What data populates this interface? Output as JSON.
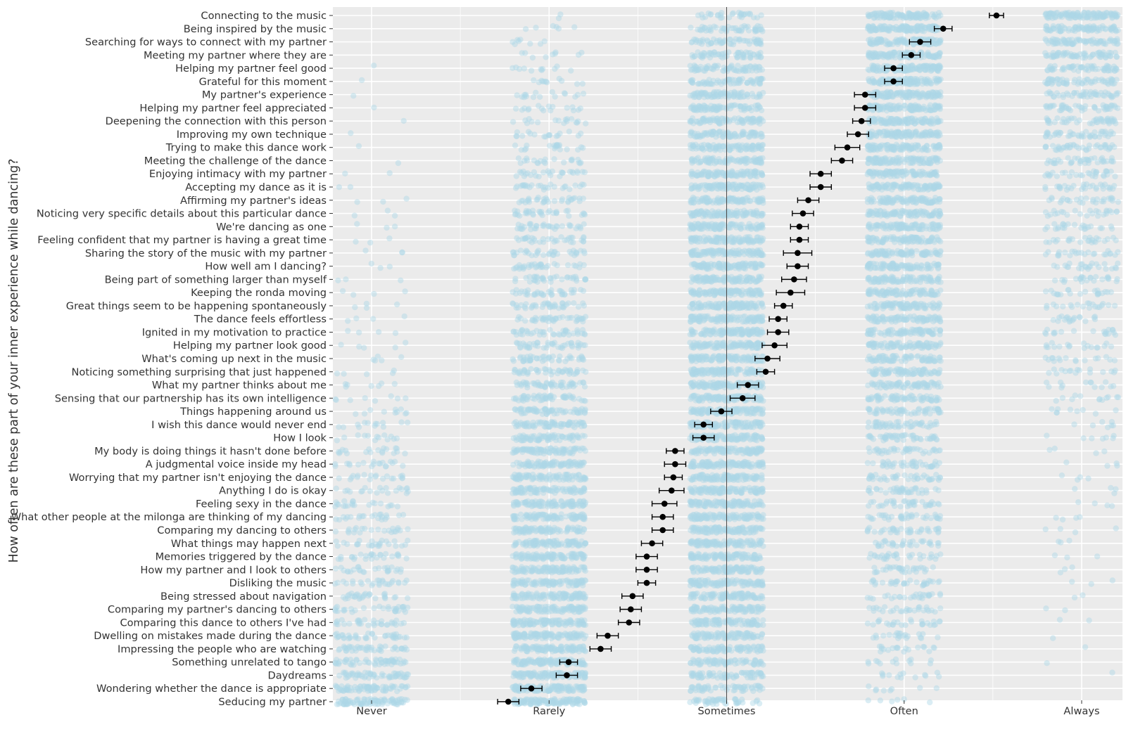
{
  "chart_data": {
    "type": "scatter",
    "title": "",
    "xlabel": "",
    "ylabel": "How often are these part of your inner experience while dancing?",
    "x_ticks": [
      "Never",
      "Rarely",
      "Sometimes",
      "Often",
      "Always"
    ],
    "xlim": [
      0.8,
      5.2
    ],
    "reference_line_x": 3,
    "raw_point_color": "#add8e6",
    "mean_point_color": "#000000",
    "panel_background": "#ebebeb",
    "grid": true,
    "items": [
      {
        "label": "Connecting to the music",
        "mean": 4.52,
        "lo": 4.48,
        "hi": 4.56
      },
      {
        "label": "Being inspired by the music",
        "mean": 4.22,
        "lo": 4.17,
        "hi": 4.27
      },
      {
        "label": "Searching for ways to connect with my partner",
        "mean": 4.09,
        "lo": 4.03,
        "hi": 4.15
      },
      {
        "label": "Meeting my partner where they are",
        "mean": 4.04,
        "lo": 3.99,
        "hi": 4.09
      },
      {
        "label": "Helping my partner feel good",
        "mean": 3.94,
        "lo": 3.89,
        "hi": 3.99
      },
      {
        "label": "Grateful for this moment",
        "mean": 3.94,
        "lo": 3.89,
        "hi": 3.99
      },
      {
        "label": "My partner's experience",
        "mean": 3.78,
        "lo": 3.72,
        "hi": 3.84
      },
      {
        "label": "Helping my partner feel appreciated",
        "mean": 3.78,
        "lo": 3.72,
        "hi": 3.84
      },
      {
        "label": "Deepening the connection with this person",
        "mean": 3.76,
        "lo": 3.71,
        "hi": 3.81
      },
      {
        "label": "Improving my own technique",
        "mean": 3.74,
        "lo": 3.68,
        "hi": 3.8
      },
      {
        "label": "Trying to make this dance work",
        "mean": 3.68,
        "lo": 3.61,
        "hi": 3.75
      },
      {
        "label": "Meeting the challenge of the dance",
        "mean": 3.65,
        "lo": 3.59,
        "hi": 3.71
      },
      {
        "label": "Enjoying intimacy with my partner",
        "mean": 3.53,
        "lo": 3.47,
        "hi": 3.59
      },
      {
        "label": "Accepting my dance as it is",
        "mean": 3.53,
        "lo": 3.47,
        "hi": 3.59
      },
      {
        "label": "Affirming my partner's ideas",
        "mean": 3.46,
        "lo": 3.4,
        "hi": 3.52
      },
      {
        "label": "Noticing very specific details about this particular dance",
        "mean": 3.43,
        "lo": 3.37,
        "hi": 3.49
      },
      {
        "label": "We're dancing as one",
        "mean": 3.41,
        "lo": 3.36,
        "hi": 3.46
      },
      {
        "label": "Feeling confident that my partner is having a great time",
        "mean": 3.41,
        "lo": 3.36,
        "hi": 3.46
      },
      {
        "label": "Sharing the story of the music with my partner",
        "mean": 3.4,
        "lo": 3.32,
        "hi": 3.48
      },
      {
        "label": "How well am I dancing?",
        "mean": 3.4,
        "lo": 3.34,
        "hi": 3.46
      },
      {
        "label": "Being part of something larger than myself",
        "mean": 3.38,
        "lo": 3.31,
        "hi": 3.45
      },
      {
        "label": "Keeping the ronda moving",
        "mean": 3.36,
        "lo": 3.28,
        "hi": 3.44
      },
      {
        "label": "Great things seem to be happening spontaneously",
        "mean": 3.32,
        "lo": 3.27,
        "hi": 3.37
      },
      {
        "label": "The dance feels effortless",
        "mean": 3.29,
        "lo": 3.24,
        "hi": 3.34
      },
      {
        "label": "Ignited in my motivation to practice",
        "mean": 3.29,
        "lo": 3.23,
        "hi": 3.35
      },
      {
        "label": "Helping my partner look good",
        "mean": 3.27,
        "lo": 3.2,
        "hi": 3.34
      },
      {
        "label": "What's coming up next in the music",
        "mean": 3.23,
        "lo": 3.16,
        "hi": 3.3
      },
      {
        "label": "Noticing something surprising that just happened",
        "mean": 3.22,
        "lo": 3.17,
        "hi": 3.27
      },
      {
        "label": "What my partner thinks about me",
        "mean": 3.12,
        "lo": 3.06,
        "hi": 3.18
      },
      {
        "label": "Sensing that our partnership has its own intelligence",
        "mean": 3.09,
        "lo": 3.02,
        "hi": 3.16
      },
      {
        "label": "Things happening around us",
        "mean": 2.97,
        "lo": 2.91,
        "hi": 3.03
      },
      {
        "label": "I wish this dance would never end",
        "mean": 2.87,
        "lo": 2.82,
        "hi": 2.92
      },
      {
        "label": "How I look",
        "mean": 2.87,
        "lo": 2.81,
        "hi": 2.93
      },
      {
        "label": "My body is doing things it hasn't done before",
        "mean": 2.71,
        "lo": 2.66,
        "hi": 2.76
      },
      {
        "label": "A judgmental voice inside my head",
        "mean": 2.71,
        "lo": 2.65,
        "hi": 2.77
      },
      {
        "label": "Worrying that my partner isn't enjoying the dance",
        "mean": 2.7,
        "lo": 2.65,
        "hi": 2.75
      },
      {
        "label": "Anything I do is okay",
        "mean": 2.69,
        "lo": 2.62,
        "hi": 2.76
      },
      {
        "label": "Feeling sexy in the dance",
        "mean": 2.65,
        "lo": 2.58,
        "hi": 2.72
      },
      {
        "label": "What other people at the milonga are thinking of my dancing",
        "mean": 2.64,
        "lo": 2.58,
        "hi": 2.7
      },
      {
        "label": "Comparing my dancing to others",
        "mean": 2.64,
        "lo": 2.58,
        "hi": 2.7
      },
      {
        "label": "What things may happen next",
        "mean": 2.58,
        "lo": 2.52,
        "hi": 2.64
      },
      {
        "label": "Memories triggered by the dance",
        "mean": 2.55,
        "lo": 2.49,
        "hi": 2.61
      },
      {
        "label": "How my partner and I look to others",
        "mean": 2.55,
        "lo": 2.49,
        "hi": 2.61
      },
      {
        "label": "Disliking the music",
        "mean": 2.55,
        "lo": 2.5,
        "hi": 2.6
      },
      {
        "label": "Being stressed about navigation",
        "mean": 2.47,
        "lo": 2.41,
        "hi": 2.53
      },
      {
        "label": "Comparing my partner's dancing to others",
        "mean": 2.46,
        "lo": 2.4,
        "hi": 2.52
      },
      {
        "label": "Comparing this dance to others I've had",
        "mean": 2.45,
        "lo": 2.39,
        "hi": 2.51
      },
      {
        "label": "Dwelling on mistakes made during the dance",
        "mean": 2.33,
        "lo": 2.27,
        "hi": 2.39
      },
      {
        "label": "Impressing the people who are watching",
        "mean": 2.29,
        "lo": 2.23,
        "hi": 2.35
      },
      {
        "label": "Something unrelated to tango",
        "mean": 2.11,
        "lo": 2.06,
        "hi": 2.16
      },
      {
        "label": "Daydreams",
        "mean": 2.1,
        "lo": 2.04,
        "hi": 2.16
      },
      {
        "label": "Wondering whether the dance is appropriate",
        "mean": 1.9,
        "lo": 1.84,
        "hi": 1.96
      },
      {
        "label": "Seducing my partner",
        "mean": 1.77,
        "lo": 1.71,
        "hi": 1.83
      }
    ]
  }
}
